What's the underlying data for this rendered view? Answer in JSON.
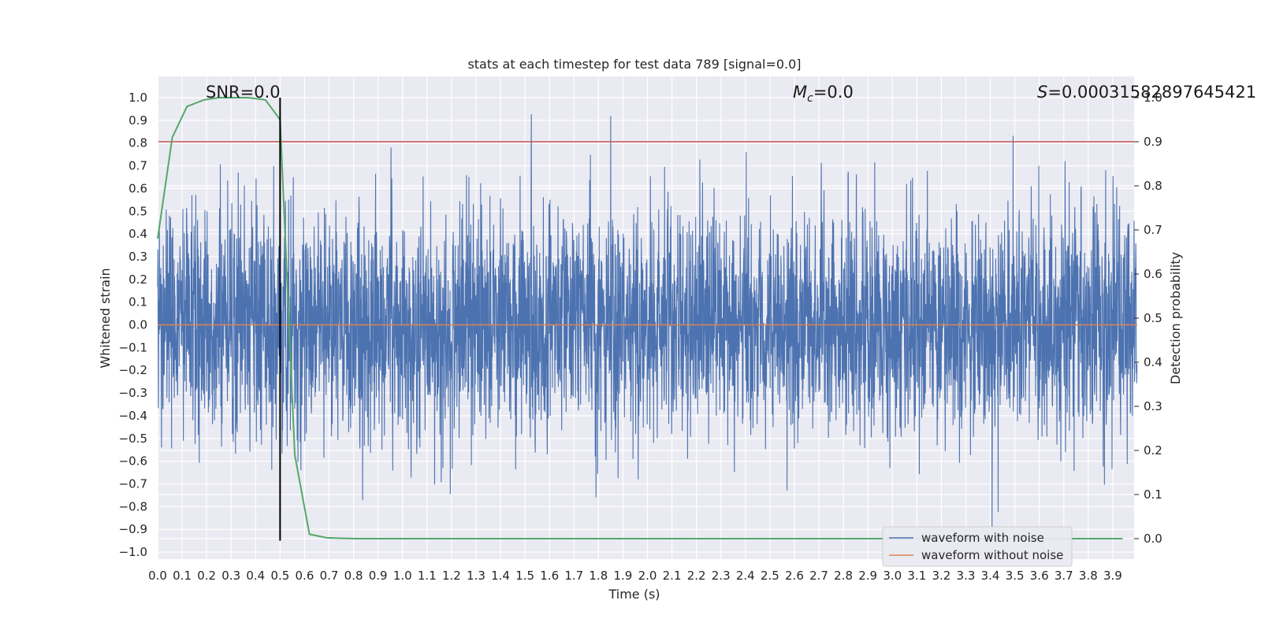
{
  "chart_data": {
    "type": "line",
    "title": "stats at each timestep for test data 789 [signal=0.0]",
    "xlabel": "Time (s)",
    "ylabel": "Whitened strain",
    "y2label": "Detection probability",
    "xlim": [
      0.0,
      4.0
    ],
    "ylim": [
      -1.05,
      1.1
    ],
    "y2lim": [
      -0.05,
      1.0
    ],
    "xticks": [
      "0.0",
      "0.1",
      "0.2",
      "0.3",
      "0.4",
      "0.5",
      "0.6",
      "0.7",
      "0.8",
      "0.9",
      "1.0",
      "1.1",
      "1.2",
      "1.3",
      "1.4",
      "1.5",
      "1.6",
      "1.7",
      "1.8",
      "1.9",
      "2.0",
      "2.1",
      "2.2",
      "2.3",
      "2.4",
      "2.5",
      "2.6",
      "2.7",
      "2.8",
      "2.9",
      "3.0",
      "3.1",
      "3.2",
      "3.3",
      "3.4",
      "3.5",
      "3.6",
      "3.7",
      "3.8",
      "3.9"
    ],
    "yticks": [
      "1.0",
      "0.9",
      "0.8",
      "0.7",
      "0.6",
      "0.5",
      "0.4",
      "0.3",
      "0.2",
      "0.1",
      "0.0",
      "−0.1",
      "−0.2",
      "−0.3",
      "−0.4",
      "−0.5",
      "−0.6",
      "−0.7",
      "−0.8",
      "−0.9",
      "−1.0"
    ],
    "y2ticks": [
      "1.0",
      "0.9",
      "0.8",
      "0.7",
      "0.6",
      "0.5",
      "0.4",
      "0.3",
      "0.2",
      "0.1",
      "0.0"
    ],
    "grid": true,
    "annotations": {
      "snr": "SNR=0.0",
      "mc_symbol": "M",
      "mc_sub": "c",
      "mc_value": "=0.0",
      "s_symbol": "S",
      "s_value": "=0.00031582897645421"
    },
    "series": [
      {
        "name": "waveform with noise",
        "color": "#4c72b0",
        "description_values": "noise, amplitude range approximately -0.95 to 1.0"
      },
      {
        "name": "waveform without noise",
        "color": "#dd8452",
        "x": [
          0.0,
          4.0
        ],
        "y": [
          0.0,
          0.0
        ]
      },
      {
        "name": "",
        "axis": "right",
        "color": "#55a868",
        "x": [
          0.0,
          0.06,
          0.12,
          0.19,
          0.25,
          0.31,
          0.37,
          0.44,
          0.5,
          0.56,
          0.62,
          0.69,
          0.75,
          0.81,
          1.0,
          1.5,
          2.0,
          2.5,
          3.0,
          3.5,
          3.94
        ],
        "y": [
          0.68,
          0.91,
          0.98,
          0.995,
          1.0,
          1.0,
          1.0,
          0.995,
          0.95,
          0.19,
          0.01,
          0.002,
          0.001,
          0.0,
          0.0,
          0.0,
          0.0,
          0.0,
          0.0,
          0.0,
          0.0
        ]
      }
    ],
    "hlines": [
      {
        "axis": "right",
        "y": 0.9,
        "color": "#c44e52"
      }
    ],
    "vlines": [
      {
        "x": 0.5,
        "y_range": [
          -0.95,
          1.0
        ],
        "color": "#000000"
      }
    ],
    "legend": {
      "placement": "lower-right",
      "entries": [
        {
          "label": "waveform with noise",
          "color": "#4c72b0"
        },
        {
          "label": "waveform without noise",
          "color": "#dd8452"
        }
      ]
    }
  }
}
